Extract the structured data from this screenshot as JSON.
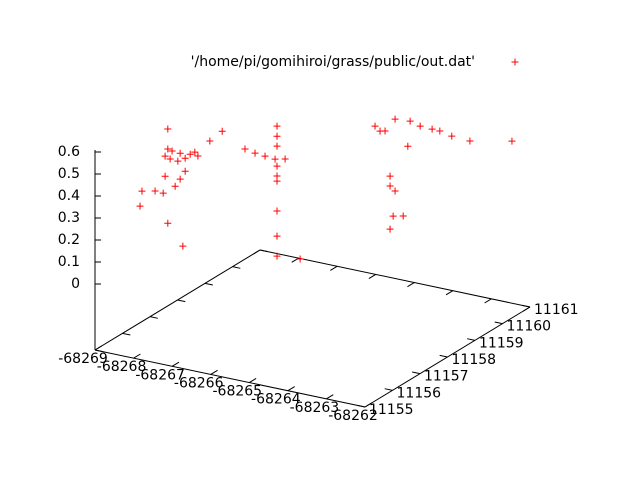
{
  "chart_data": {
    "type": "scatter3d",
    "xlim": [
      -68269,
      -68262
    ],
    "xticks": [
      -68269,
      -68268,
      -68267,
      -68266,
      -68265,
      -68264,
      -68263,
      -68262
    ],
    "ylim": [
      11155,
      11161
    ],
    "yticks": [
      11155,
      11156,
      11157,
      11158,
      11159,
      11160,
      11161
    ],
    "zlim": [
      0,
      0.6
    ],
    "zticks": [
      0,
      0.1,
      0.2,
      0.3,
      0.4,
      0.5,
      0.6
    ],
    "legend": "top-right",
    "series": [
      {
        "name": "'/home/pi/gomihiroi/grass/public/out.dat'",
        "color": "#ff0000",
        "x": [
          -68267.54,
          -68267.43,
          -68267.22,
          -68266.96,
          -68266.76,
          -68267.48,
          -68267.09,
          -68267.28,
          -68266.84,
          -68267.61,
          -68267.54,
          -68266.45,
          -68266.13,
          -68267.09,
          -68267.22,
          -68267.61,
          -68267.66,
          -68267.87,
          -68268.21,
          -68268.26,
          -68267.54,
          -68267.15,
          -68267.35,
          -68267.25,
          -68266.99,
          -68266.73,
          -68266.47,
          -68266.21,
          -68266.42,
          -68266.42,
          -68266.42,
          -68266.42,
          -68266.42,
          -68266.42,
          -68266.42,
          -68266.42,
          -68266.42,
          -68265.82,
          -68265.59,
          -68265.33,
          -68265.07,
          -68264.68,
          -68264.42,
          -68264.11,
          -68263.91,
          -68263.6,
          -68263.13,
          -68262.04,
          -68265.2,
          -68265.2,
          -68265.07,
          -68265.12,
          -68264.86,
          -68265.2,
          -68265.46,
          -68264.74
        ],
        "y": [
          11155.6,
          11155.6,
          11155.6,
          11155.6,
          11155.6,
          11155.6,
          11155.6,
          11155.6,
          11155.6,
          11155.6,
          11155.6,
          11155.6,
          11155.6,
          11155.6,
          11155.6,
          11155.6,
          11155.6,
          11155.6,
          11155.6,
          11155.6,
          11155.6,
          11155.6,
          11155.6,
          11158,
          11158,
          11158,
          11158,
          11158,
          11158,
          11158,
          11158,
          11158,
          11158,
          11158,
          11158,
          11158,
          11158,
          11158,
          11160.4,
          11160.4,
          11160.4,
          11160.4,
          11160.4,
          11160.4,
          11160.4,
          11160.4,
          11160.4,
          11160.4,
          11160.4,
          11160.4,
          11160.4,
          11160.4,
          11160.4,
          11160.4,
          11160.4,
          11160.4
        ],
        "z": [
          0.622,
          0.617,
          0.615,
          0.62,
          0.619,
          0.579,
          0.597,
          0.577,
          0.634,
          0.587,
          0.713,
          0.699,
          0.755,
          0.538,
          0.497,
          0.496,
          0.417,
          0.419,
          0.406,
          0.336,
          0.285,
          0.195,
          0.46,
          0.451,
          0.442,
          0.438,
          0.434,
          0.444,
          0.586,
          0.54,
          0.495,
          0.404,
          0.359,
          0.336,
          0.2,
          0.086,
          -0.005,
          0.004,
          0.435,
          0.422,
          0.486,
          0.491,
          0.478,
          0.476,
          0.475,
          0.463,
          0.458,
          0.498,
          0.222,
          0.177,
          0.159,
          0.043,
          0.053,
          -0.019,
          0.417,
          0.375
        ]
      }
    ]
  }
}
